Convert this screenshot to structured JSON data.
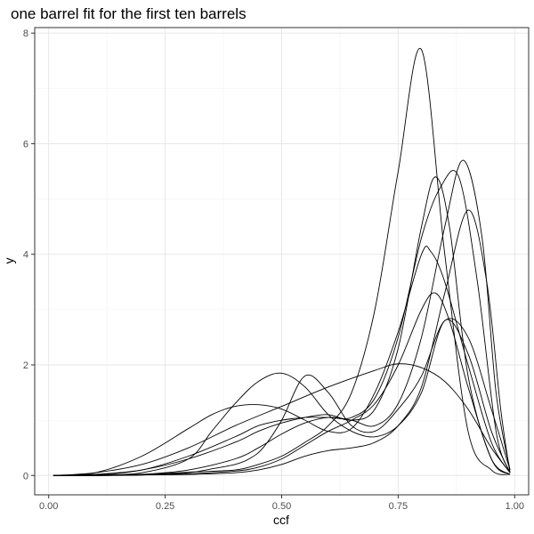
{
  "chart_data": {
    "type": "line",
    "title": "one barrel fit for the first ten barrels",
    "xlabel": "ccf",
    "ylabel": "y",
    "xlim": [
      -0.03,
      1.03
    ],
    "ylim": [
      -0.35,
      8.1
    ],
    "xticks": [
      0.0,
      0.25,
      0.5,
      0.75,
      1.0
    ],
    "xtick_labels": [
      "0.00",
      "0.25",
      "0.50",
      "0.75",
      "1.00"
    ],
    "yticks": [
      0,
      2,
      4,
      6,
      8
    ],
    "ytick_labels": [
      "0",
      "2",
      "4",
      "6",
      "8"
    ],
    "grid": true,
    "legend": "none",
    "line_color": "#000000",
    "series": [
      {
        "x": [
          0.01,
          0.1,
          0.2,
          0.3,
          0.4,
          0.45,
          0.5,
          0.55,
          0.6,
          0.65,
          0.7,
          0.75,
          0.8,
          0.85,
          0.9,
          0.95,
          0.99
        ],
        "y": [
          0.0,
          0.01,
          0.02,
          0.06,
          0.1,
          0.2,
          0.35,
          0.6,
          0.9,
          1.5,
          3.0,
          5.5,
          7.7,
          4.0,
          0.8,
          0.1,
          0.02
        ]
      },
      {
        "x": [
          0.01,
          0.1,
          0.2,
          0.3,
          0.35,
          0.4,
          0.45,
          0.5,
          0.55,
          0.6,
          0.65,
          0.7,
          0.75,
          0.8,
          0.82,
          0.85,
          0.9,
          0.95,
          0.99
        ],
        "y": [
          0.0,
          0.05,
          0.35,
          0.85,
          1.1,
          1.25,
          1.28,
          1.2,
          1.0,
          0.8,
          0.85,
          1.5,
          2.6,
          4.0,
          4.05,
          3.5,
          2.0,
          0.6,
          0.05
        ]
      },
      {
        "x": [
          0.01,
          0.1,
          0.2,
          0.3,
          0.35,
          0.4,
          0.43,
          0.46,
          0.5,
          0.55,
          0.6,
          0.65,
          0.7,
          0.75,
          0.8,
          0.85,
          0.9,
          0.95,
          0.99
        ],
        "y": [
          0.0,
          0.0,
          0.01,
          0.05,
          0.12,
          0.2,
          0.3,
          0.5,
          1.0,
          1.8,
          1.5,
          0.9,
          0.8,
          1.2,
          1.8,
          2.8,
          2.5,
          1.2,
          0.1
        ]
      },
      {
        "x": [
          0.01,
          0.1,
          0.2,
          0.3,
          0.35,
          0.4,
          0.45,
          0.5,
          0.55,
          0.6,
          0.65,
          0.7,
          0.75,
          0.8,
          0.85,
          0.9,
          0.95,
          0.99
        ],
        "y": [
          0.0,
          0.01,
          0.05,
          0.3,
          0.8,
          1.3,
          1.7,
          1.85,
          1.6,
          1.1,
          0.8,
          0.7,
          0.9,
          1.5,
          2.8,
          2.2,
          0.8,
          0.05
        ]
      },
      {
        "x": [
          0.01,
          0.1,
          0.2,
          0.3,
          0.4,
          0.5,
          0.6,
          0.7,
          0.75,
          0.8,
          0.85,
          0.9,
          0.95,
          0.99
        ],
        "y": [
          0.0,
          0.05,
          0.2,
          0.5,
          0.9,
          1.25,
          1.6,
          1.9,
          2.02,
          1.95,
          1.7,
          1.2,
          0.5,
          0.05
        ]
      },
      {
        "x": [
          0.01,
          0.1,
          0.2,
          0.3,
          0.4,
          0.45,
          0.5,
          0.55,
          0.6,
          0.65,
          0.7,
          0.75,
          0.8,
          0.83,
          0.86,
          0.9,
          0.95,
          0.99
        ],
        "y": [
          0.0,
          0.02,
          0.1,
          0.3,
          0.6,
          0.8,
          0.95,
          1.05,
          1.1,
          1.0,
          1.2,
          2.3,
          4.5,
          5.4,
          4.5,
          1.8,
          0.3,
          0.02
        ]
      },
      {
        "x": [
          0.01,
          0.1,
          0.2,
          0.3,
          0.4,
          0.45,
          0.5,
          0.55,
          0.6,
          0.65,
          0.7,
          0.75,
          0.8,
          0.84,
          0.88,
          0.92,
          0.96,
          0.99
        ],
        "y": [
          0.0,
          0.01,
          0.1,
          0.35,
          0.7,
          0.9,
          1.0,
          1.05,
          1.05,
          1.05,
          1.4,
          2.5,
          4.3,
          5.2,
          5.4,
          3.5,
          0.8,
          0.05
        ]
      },
      {
        "x": [
          0.01,
          0.1,
          0.2,
          0.3,
          0.4,
          0.45,
          0.5,
          0.55,
          0.6,
          0.65,
          0.7,
          0.75,
          0.8,
          0.85,
          0.89,
          0.93,
          0.96,
          0.99
        ],
        "y": [
          0.0,
          0.0,
          0.02,
          0.1,
          0.3,
          0.5,
          0.75,
          0.95,
          1.05,
          1.0,
          0.9,
          1.3,
          2.5,
          4.5,
          5.7,
          4.3,
          1.5,
          0.1
        ]
      },
      {
        "x": [
          0.01,
          0.1,
          0.2,
          0.3,
          0.4,
          0.45,
          0.5,
          0.55,
          0.6,
          0.65,
          0.7,
          0.75,
          0.8,
          0.85,
          0.9,
          0.94,
          0.97,
          0.99
        ],
        "y": [
          0.0,
          0.0,
          0.01,
          0.02,
          0.05,
          0.1,
          0.2,
          0.35,
          0.45,
          0.5,
          0.6,
          0.9,
          1.6,
          3.3,
          4.8,
          3.5,
          1.2,
          0.05
        ]
      },
      {
        "x": [
          0.01,
          0.1,
          0.2,
          0.3,
          0.4,
          0.45,
          0.5,
          0.55,
          0.6,
          0.65,
          0.7,
          0.75,
          0.8,
          0.83,
          0.86,
          0.9,
          0.95,
          0.99
        ],
        "y": [
          0.0,
          0.0,
          0.01,
          0.03,
          0.08,
          0.15,
          0.3,
          0.55,
          0.8,
          1.0,
          1.3,
          2.0,
          3.0,
          3.3,
          2.8,
          1.6,
          0.3,
          0.02
        ]
      }
    ]
  }
}
